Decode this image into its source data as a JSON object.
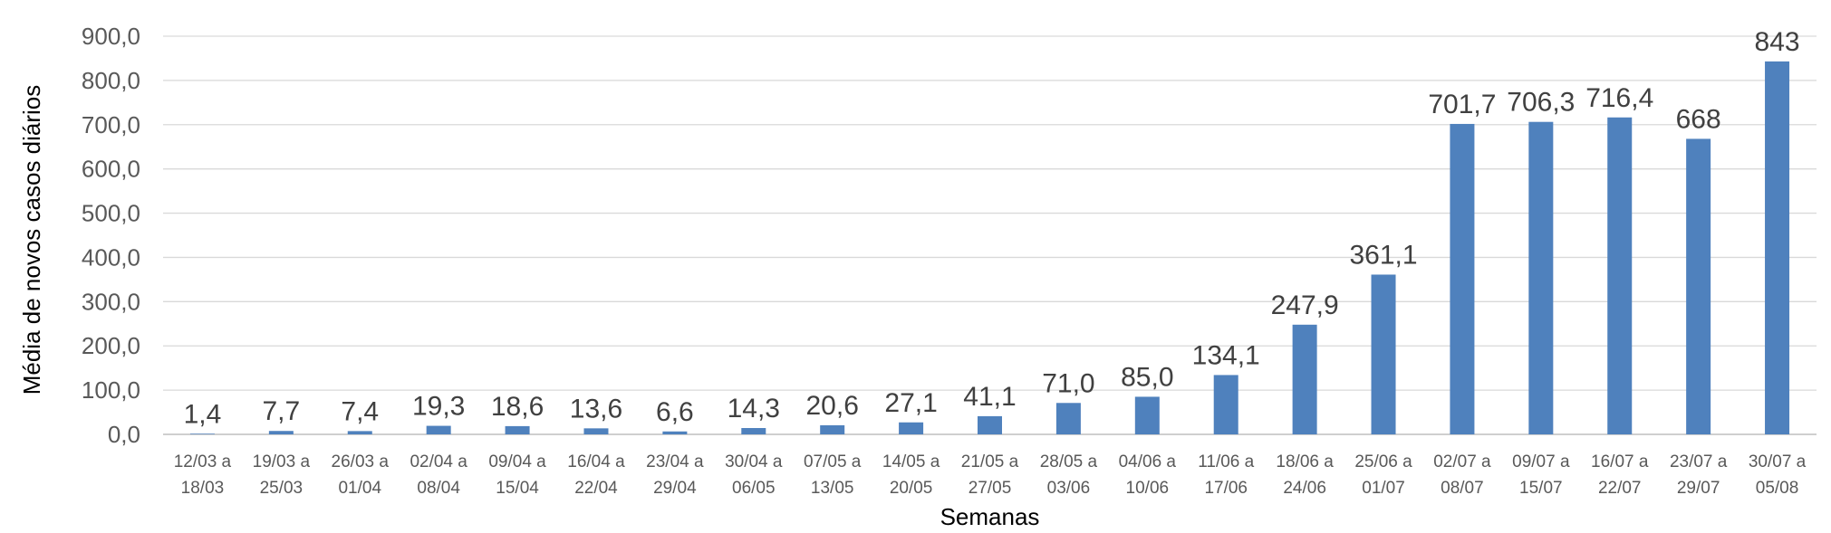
{
  "chart_data": {
    "type": "bar",
    "title": "",
    "xlabel": "Semanas",
    "ylabel": "Média de novos casos diários",
    "ylim": [
      0,
      900
    ],
    "grid": true,
    "legend": "none",
    "bar_color": "#4f81bd",
    "y_ticks": [
      "0,0",
      "100,0",
      "200,0",
      "300,0",
      "400,0",
      "500,0",
      "600,0",
      "700,0",
      "800,0",
      "900,0"
    ],
    "categories": [
      [
        "12/03 a",
        "18/03"
      ],
      [
        "19/03 a",
        "25/03"
      ],
      [
        "26/03 a",
        "01/04"
      ],
      [
        "02/04 a",
        "08/04"
      ],
      [
        "09/04 a",
        "15/04"
      ],
      [
        "16/04 a",
        "22/04"
      ],
      [
        "23/04 a",
        "29/04"
      ],
      [
        "30/04 a",
        "06/05"
      ],
      [
        "07/05 a",
        "13/05"
      ],
      [
        "14/05 a",
        "20/05"
      ],
      [
        "21/05 a",
        "27/05"
      ],
      [
        "28/05 a",
        "03/06"
      ],
      [
        "04/06 a",
        "10/06"
      ],
      [
        "11/06 a",
        "17/06"
      ],
      [
        "18/06 a",
        "24/06"
      ],
      [
        "25/06 a",
        "01/07"
      ],
      [
        "02/07 a",
        "08/07"
      ],
      [
        "09/07 a",
        "15/07"
      ],
      [
        "16/07 a",
        "22/07"
      ],
      [
        "23/07 a",
        "29/07"
      ],
      [
        "30/07 a",
        "05/08"
      ]
    ],
    "values": [
      1.4,
      7.7,
      7.4,
      19.3,
      18.6,
      13.6,
      6.6,
      14.3,
      20.6,
      27.1,
      41.1,
      71.0,
      85.0,
      134.1,
      247.9,
      361.1,
      701.7,
      706.3,
      716.4,
      668,
      843
    ],
    "data_labels": [
      "1,4",
      "7,7",
      "7,4",
      "19,3",
      "18,6",
      "13,6",
      "6,6",
      "14,3",
      "20,6",
      "27,1",
      "41,1",
      "71,0",
      "85,0",
      "134,1",
      "247,9",
      "361,1",
      "701,7",
      "706,3",
      "716,4",
      "668",
      "843"
    ]
  }
}
